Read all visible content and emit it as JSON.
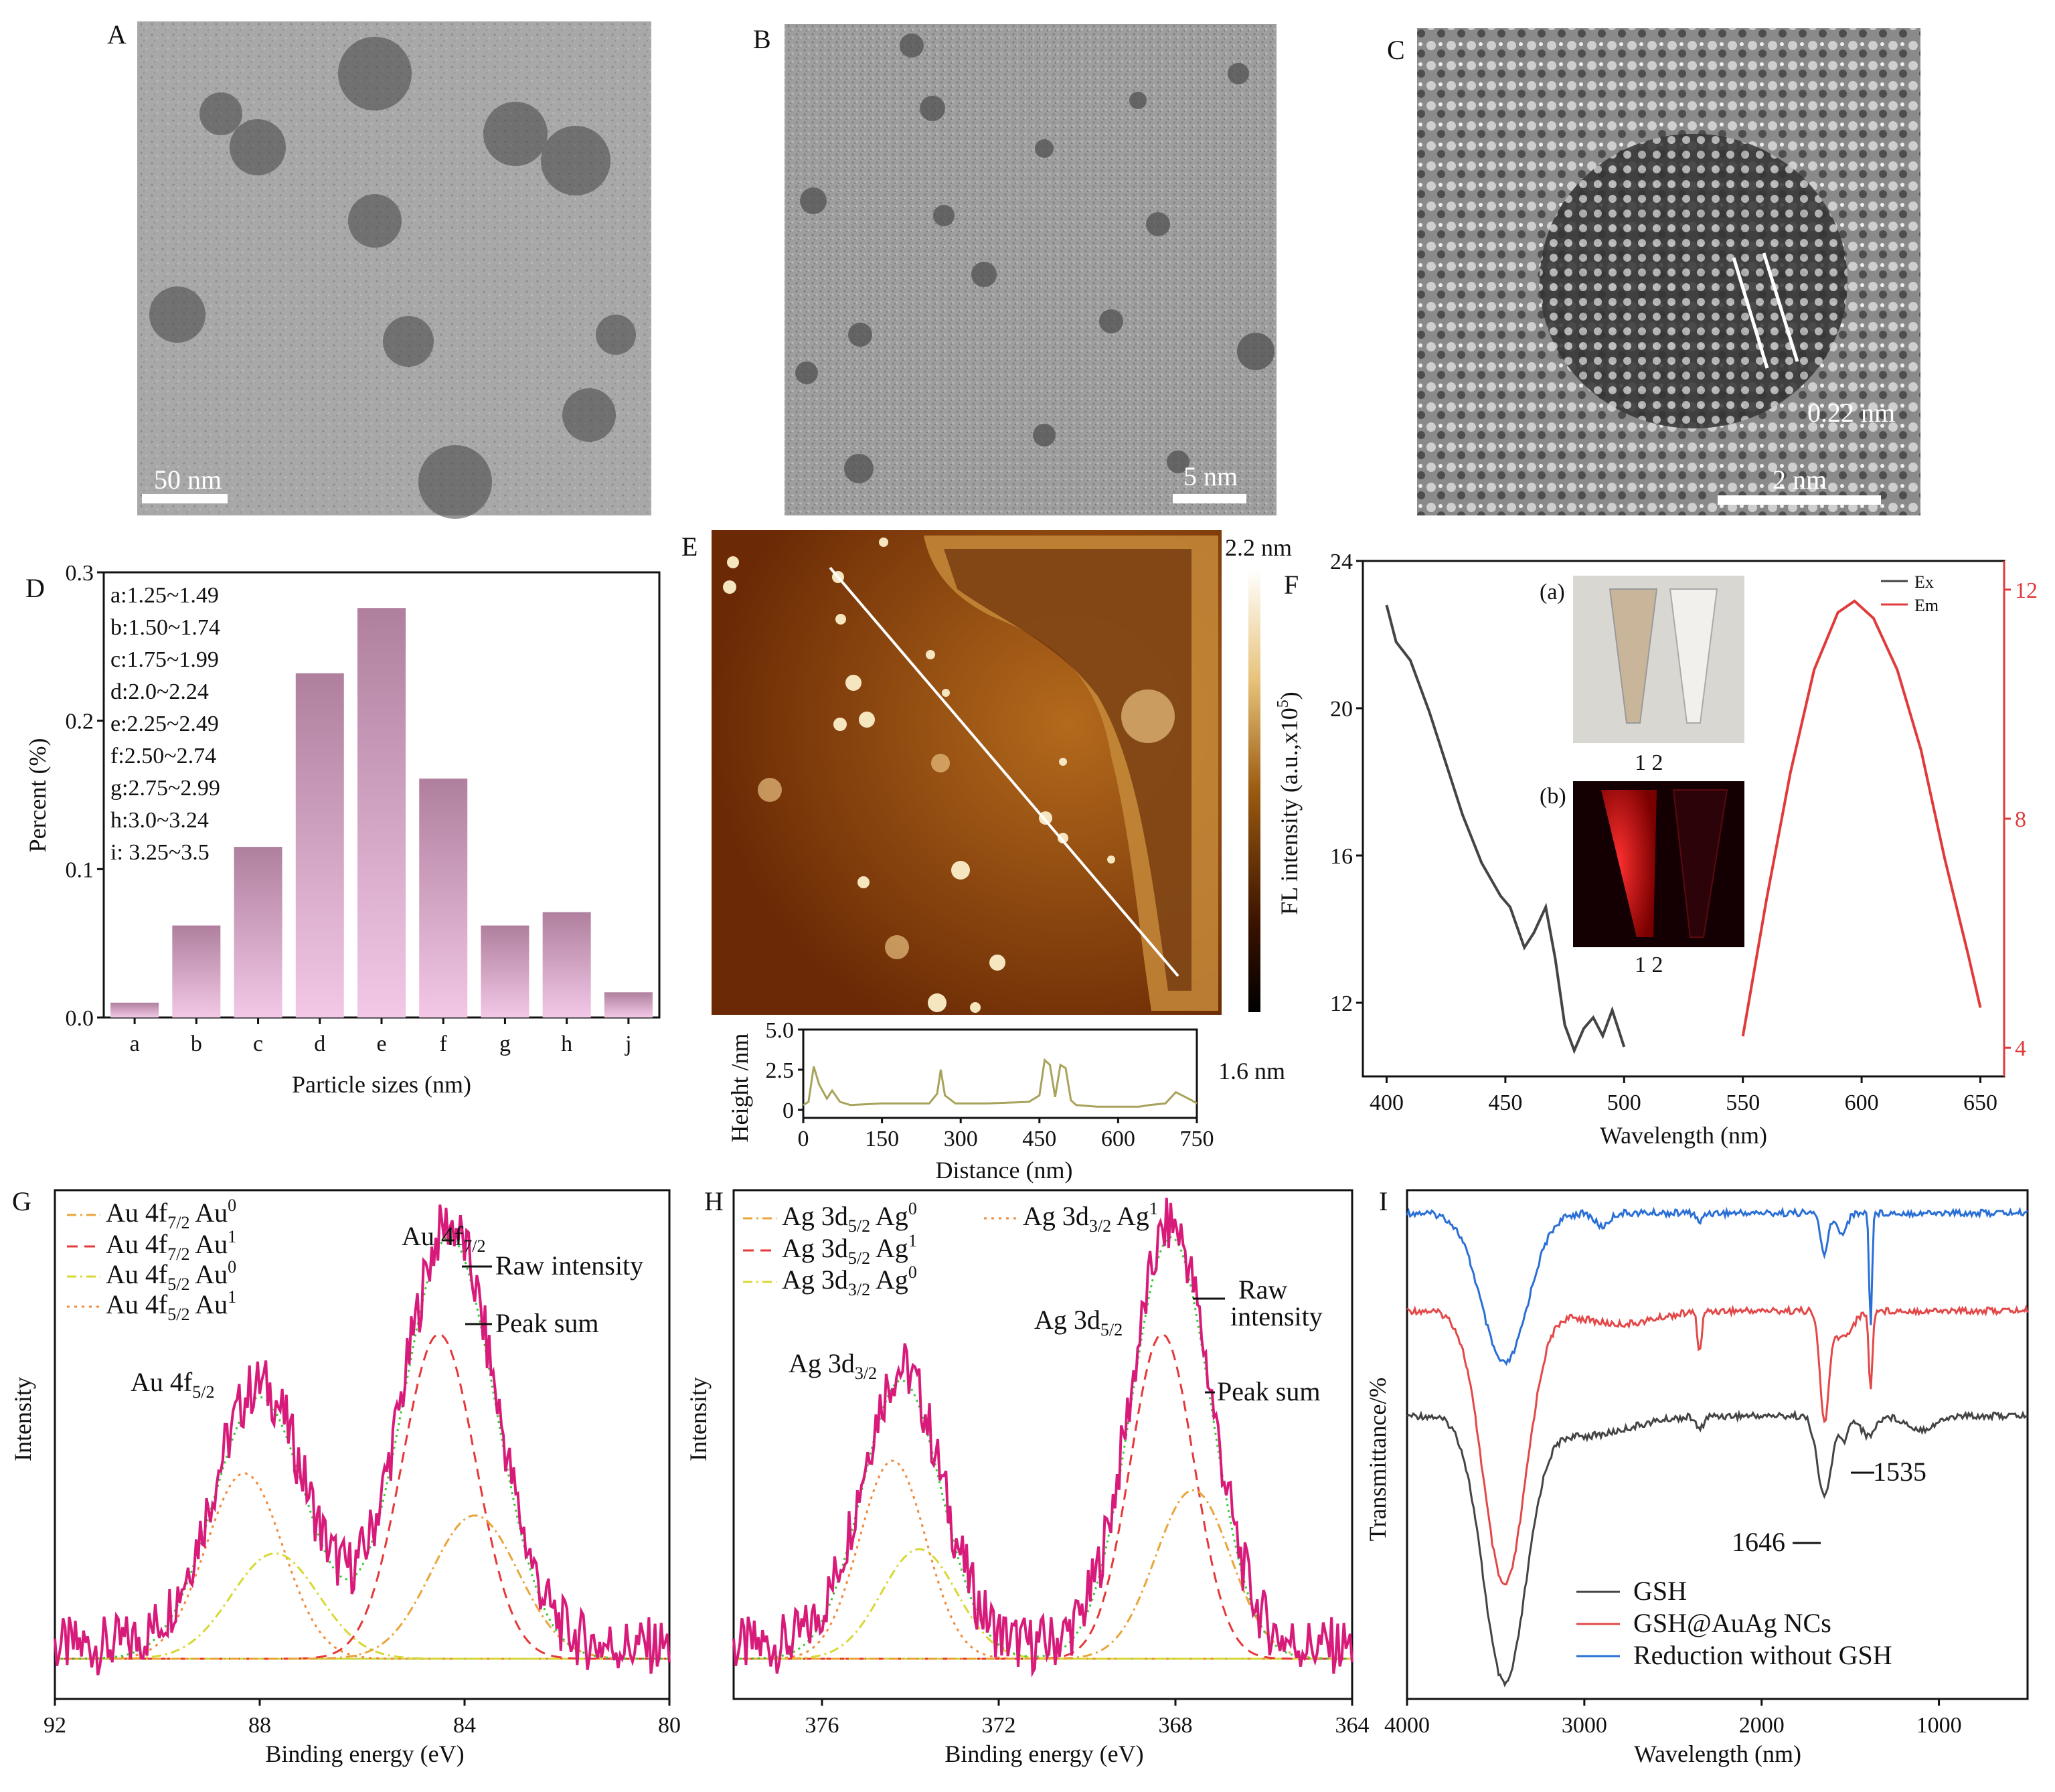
{
  "panels": {
    "A": {
      "letter": "A",
      "scale_bar": "50 nm"
    },
    "B": {
      "letter": "B",
      "scale_bar": "5 nm"
    },
    "C": {
      "letter": "C",
      "scale_bar": "2 nm",
      "lattice": "0.22 nm"
    },
    "E": {
      "letter": "E",
      "scale_max": "2.2 nm",
      "scale_min": "1.6 nm"
    }
  },
  "colors": {
    "bar": "#c992b8",
    "ex": "#444444",
    "em": "#e03a3a",
    "raw": "#d81b7a",
    "green": "#33cc33"
  },
  "chart_data": [
    {
      "id": "D",
      "type": "bar",
      "letter": "D",
      "xlabel": "Particle sizes (nm)",
      "ylabel": "Percent (%)",
      "ylim": [
        0,
        0.3
      ],
      "yticks": [
        "0.0",
        "0.1",
        "0.2",
        "0.3"
      ],
      "categories": [
        "a",
        "b",
        "c",
        "d",
        "e",
        "f",
        "g",
        "h",
        "j"
      ],
      "values": [
        0.01,
        0.062,
        0.115,
        0.232,
        0.276,
        0.161,
        0.062,
        0.071,
        0.017
      ],
      "legend": [
        "a:1.25~1.49",
        "b:1.50~1.74",
        "c:1.75~1.99",
        "d:2.0~2.24",
        "e:2.25~2.49",
        "f:2.50~2.74",
        "g:2.75~2.99",
        "h:3.0~3.24",
        "i: 3.25~3.5"
      ]
    },
    {
      "id": "E_profile",
      "type": "line",
      "xlabel": "Distance (nm)",
      "ylabel": "Height /nm",
      "xlim": [
        0,
        750
      ],
      "ylim": [
        -0.5,
        5.0
      ],
      "xticks": [
        "0",
        "150",
        "300",
        "450",
        "600",
        "750"
      ],
      "yticks": [
        "0",
        "2.5",
        "5.0"
      ],
      "x": [
        0,
        10,
        20,
        30,
        45,
        55,
        70,
        90,
        150,
        240,
        255,
        262,
        270,
        290,
        350,
        430,
        450,
        460,
        470,
        480,
        490,
        500,
        510,
        520,
        560,
        640,
        660,
        690,
        710,
        740,
        750
      ],
      "y": [
        0.3,
        0.5,
        2.7,
        1.6,
        0.7,
        1.2,
        0.5,
        0.3,
        0.4,
        0.4,
        1.0,
        2.5,
        0.9,
        0.4,
        0.4,
        0.5,
        0.9,
        3.1,
        2.8,
        0.8,
        2.8,
        2.6,
        0.6,
        0.3,
        0.2,
        0.2,
        0.3,
        0.4,
        1.1,
        0.6,
        0.4
      ]
    },
    {
      "id": "F",
      "type": "line",
      "letter": "F",
      "xlabel": "Wavelength (nm)",
      "ylabel": "FL intensity (a.u.,x10",
      "ylabel_sup": "5",
      "ylabel_end": ")",
      "xlim": [
        390,
        660
      ],
      "ylim_left": [
        10,
        24
      ],
      "ylim_right": [
        3.5,
        12.5
      ],
      "xticks": [
        "400",
        "450",
        "500",
        "550",
        "600",
        "650"
      ],
      "yticks_left": [
        "12",
        "16",
        "20",
        "24"
      ],
      "yticks_right": [
        "4",
        "8",
        "12"
      ],
      "inset_a": "(a)",
      "inset_b": "(b)",
      "tube_labels": "1 2",
      "series": [
        {
          "name": "Ex",
          "x": [
            400,
            404,
            410,
            418,
            425,
            432,
            440,
            448,
            452,
            458,
            462,
            467,
            471,
            475,
            479,
            483,
            487,
            491,
            495,
            500
          ],
          "y": [
            22.8,
            21.8,
            21.3,
            19.9,
            18.5,
            17.1,
            15.8,
            14.9,
            14.6,
            13.5,
            13.9,
            14.6,
            13.2,
            11.4,
            10.7,
            11.3,
            11.6,
            11.1,
            11.8,
            10.8
          ]
        },
        {
          "name": "Em",
          "x": [
            550,
            560,
            570,
            580,
            590,
            597,
            605,
            615,
            625,
            635,
            645,
            650
          ],
          "y": [
            4.2,
            6.6,
            8.8,
            10.6,
            11.6,
            11.8,
            11.5,
            10.6,
            9.2,
            7.3,
            5.6,
            4.7
          ]
        }
      ]
    },
    {
      "id": "G",
      "type": "line",
      "letter": "G",
      "xlabel": "Binding energy (eV)",
      "ylabel": "Intensity",
      "xlim": [
        92,
        80
      ],
      "xticks": [
        "92",
        "88",
        "84",
        "80"
      ],
      "legend": [
        "Au 4f7/2 Au0",
        "Au 4f7/2 Au1",
        "Au 4f5/2 Au0",
        "Au 4f5/2 Au1"
      ],
      "peak_labels": [
        "Au 4f5/2",
        "Au 4f7/2",
        "Raw intensity",
        "Peak sum"
      ],
      "peaks": [
        {
          "center": 88.0,
          "height": 0.62
        },
        {
          "center": 84.3,
          "height": 1.0
        }
      ]
    },
    {
      "id": "H",
      "type": "line",
      "letter": "H",
      "xlabel": "Binding energy (eV)",
      "ylabel": "Intensity",
      "xlim": [
        378,
        364
      ],
      "xticks": [
        "376",
        "372",
        "368",
        "364"
      ],
      "legend": [
        "Ag 3d5/2 Ag0",
        "Ag 3d5/2 Ag1",
        "Ag 3d3/2 Ag0",
        "Ag 3d3/2 Ag1"
      ],
      "peak_labels": [
        "Ag 3d3/2",
        "Ag 3d5/2",
        "Raw",
        "intensity",
        "Peak sum"
      ],
      "peaks": [
        {
          "center": 374.2,
          "height": 0.66
        },
        {
          "center": 368.1,
          "height": 1.0
        }
      ]
    },
    {
      "id": "I",
      "type": "line",
      "letter": "I",
      "xlabel": "Wavelength (nm)",
      "ylabel": "Transmittance/%",
      "xlim": [
        4000,
        500
      ],
      "xticks": [
        "4000",
        "3000",
        "2000",
        "1000"
      ],
      "annotations": [
        "1646",
        "1535"
      ],
      "legend": [
        "GSH",
        "GSH@AuAg NCs",
        "Reduction without GSH"
      ]
    }
  ]
}
